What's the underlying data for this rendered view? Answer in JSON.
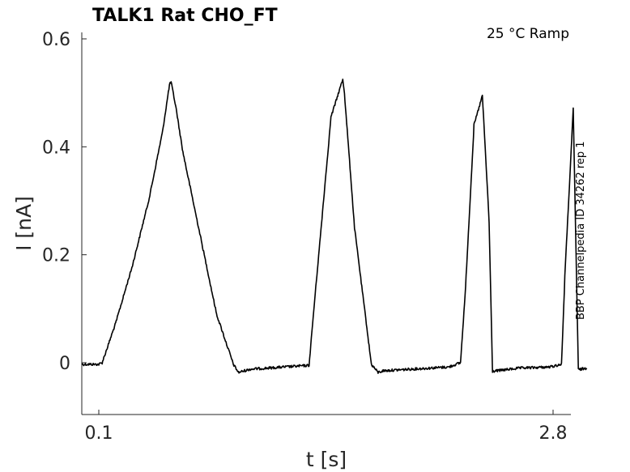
{
  "chart_data": {
    "type": "line",
    "title": "TALK1  Rat  CHO_FT",
    "annotation": "25 °C  Ramp",
    "side_label": "BBP Channelpedia ID 34262 rep 1",
    "xlabel": "t [s]",
    "ylabel": "I [nA]",
    "xlim": [
      0.0,
      3.0
    ],
    "ylim": [
      -0.095,
      0.6
    ],
    "x_ticks": [
      0.1,
      2.8
    ],
    "x_tick_labels": [
      "0.1",
      "2.8"
    ],
    "y_ticks": [
      0,
      0.2,
      0.4,
      0.6
    ],
    "y_tick_labels": [
      "0",
      "0.2",
      "0.4",
      "0.6"
    ],
    "grid": false,
    "series": [
      {
        "color": "#000000",
        "x": [
          0.0,
          0.1,
          0.12,
          0.2,
          0.3,
          0.4,
          0.48,
          0.52,
          0.53,
          0.56,
          0.6,
          0.7,
          0.8,
          0.9,
          0.93,
          1.0,
          1.2,
          1.35,
          1.37,
          1.42,
          1.48,
          1.55,
          1.56,
          1.62,
          1.72,
          1.76,
          1.79,
          1.95,
          2.18,
          2.25,
          2.28,
          2.33,
          2.38,
          2.42,
          2.44,
          2.6,
          2.78,
          2.85,
          2.87,
          2.92,
          2.95,
          3.0
        ],
        "y": [
          -0.003,
          -0.003,
          0.0,
          0.073,
          0.18,
          0.305,
          0.43,
          0.515,
          0.52,
          0.47,
          0.39,
          0.24,
          0.09,
          -0.003,
          -0.018,
          -0.012,
          -0.008,
          -0.005,
          0.07,
          0.245,
          0.455,
          0.525,
          0.5,
          0.25,
          -0.003,
          -0.018,
          -0.015,
          -0.012,
          -0.008,
          0.0,
          0.14,
          0.44,
          0.495,
          0.26,
          -0.016,
          -0.01,
          -0.008,
          -0.003,
          0.16,
          0.47,
          -0.013,
          -0.01
        ]
      }
    ]
  }
}
